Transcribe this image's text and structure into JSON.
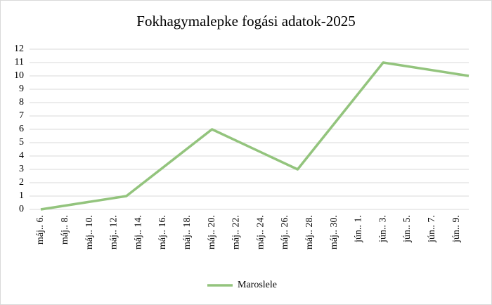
{
  "chart_data": {
    "type": "line",
    "title": "Fokhagymalepke fogási adatok-2025",
    "x": [
      0,
      7,
      14,
      21,
      28,
      35
    ],
    "series": [
      {
        "name": "Maroslele",
        "color": "#93c47d",
        "values": [
          0,
          1,
          6,
          3,
          11,
          10
        ]
      }
    ],
    "xlim": [
      0,
      35
    ],
    "xticks": [
      {
        "value": 0,
        "label": "máj.. 6."
      },
      {
        "value": 2,
        "label": "máj.. 8."
      },
      {
        "value": 4,
        "label": "máj.. 10."
      },
      {
        "value": 6,
        "label": "máj.. 12."
      },
      {
        "value": 8,
        "label": "máj.. 14."
      },
      {
        "value": 10,
        "label": "máj.. 16."
      },
      {
        "value": 12,
        "label": "máj.. 18."
      },
      {
        "value": 14,
        "label": "máj.. 20."
      },
      {
        "value": 16,
        "label": "máj.. 22."
      },
      {
        "value": 18,
        "label": "máj.. 24."
      },
      {
        "value": 20,
        "label": "máj.. 26."
      },
      {
        "value": 22,
        "label": "máj.. 28."
      },
      {
        "value": 24,
        "label": "máj.. 30."
      },
      {
        "value": 26,
        "label": "jún.. 1."
      },
      {
        "value": 28,
        "label": "jún.. 3."
      },
      {
        "value": 30,
        "label": "jún.. 5."
      },
      {
        "value": 32,
        "label": "jún.. 7."
      },
      {
        "value": 34,
        "label": "jún.. 9."
      }
    ],
    "ylim": [
      0,
      12
    ],
    "yticks": [
      0,
      1,
      2,
      3,
      4,
      5,
      6,
      7,
      8,
      9,
      10,
      11,
      12
    ],
    "grid": true,
    "legend": "bottom"
  }
}
